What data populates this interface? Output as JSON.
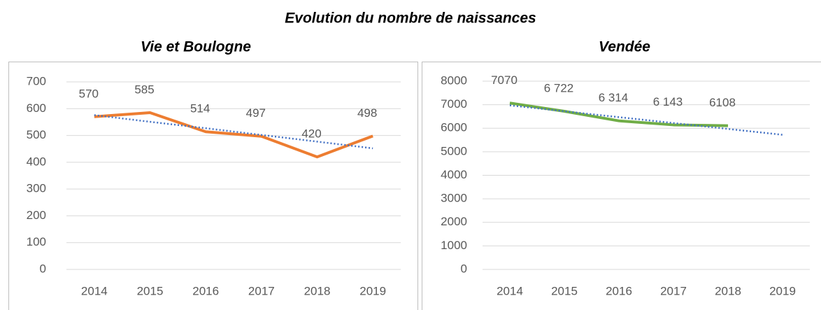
{
  "title": "Evolution du nombre de naissances",
  "chart_data": [
    {
      "type": "line",
      "title": "Vie et Boulogne",
      "categories": [
        "2014",
        "2015",
        "2016",
        "2017",
        "2018",
        "2019"
      ],
      "values": [
        570,
        585,
        514,
        497,
        420,
        498
      ],
      "color": "#ed7d31",
      "trend": {
        "color": "#4472c4",
        "style": "dotted",
        "values": [
          576,
          551,
          527,
          502,
          477,
          452
        ]
      },
      "ylim": [
        0,
        700
      ],
      "yticks": [
        0,
        100,
        200,
        300,
        400,
        500,
        600,
        700
      ],
      "grid": true
    },
    {
      "type": "line",
      "title": "Vendée",
      "categories": [
        "2014",
        "2015",
        "2016",
        "2017",
        "2018",
        "2019"
      ],
      "values": [
        7070,
        6722,
        6314,
        6143,
        6108,
        null
      ],
      "value_labels": [
        "7070",
        "6 722",
        "6 314",
        "6 143",
        "6108",
        null
      ],
      "color": "#70ad47",
      "trend": {
        "color": "#4472c4",
        "style": "dotted",
        "values": [
          6972,
          6722,
          6471,
          6221,
          5971,
          5721
        ]
      },
      "ylim": [
        0,
        8000
      ],
      "yticks": [
        0,
        1000,
        2000,
        3000,
        4000,
        5000,
        6000,
        7000,
        8000
      ],
      "grid": true
    }
  ]
}
